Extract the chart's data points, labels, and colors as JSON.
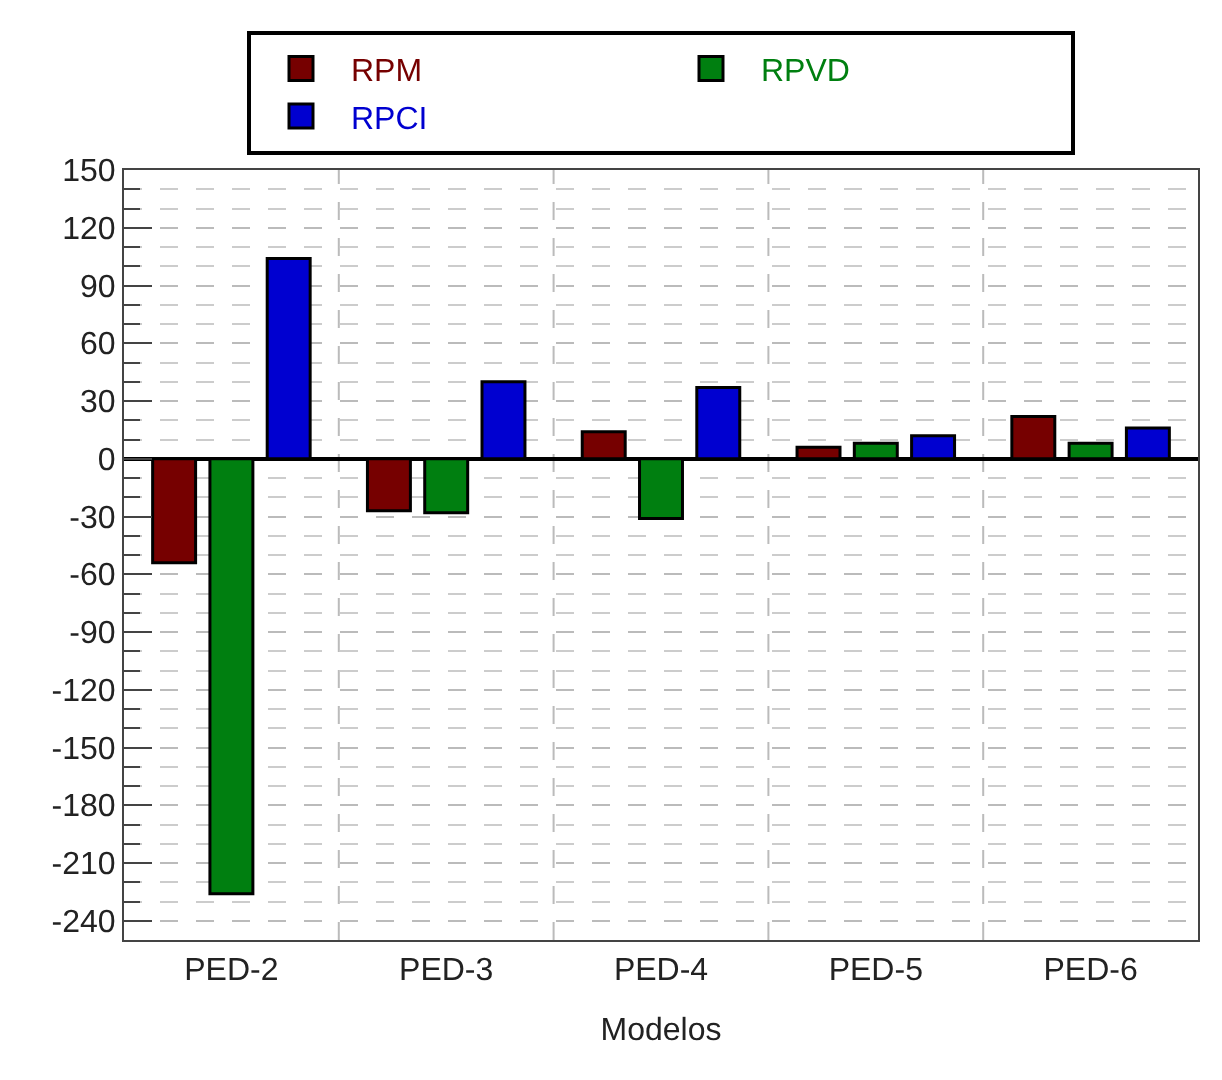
{
  "chart_data": {
    "type": "bar",
    "xlabel": "Modelos",
    "categories": [
      "PED-2",
      "PED-3",
      "PED-4",
      "PED-5",
      "PED-6"
    ],
    "series": [
      {
        "name": "RPM",
        "color": "#760000",
        "values": [
          -54,
          -27,
          14,
          6,
          22
        ]
      },
      {
        "name": "RPVD",
        "color": "#007f10",
        "values": [
          -226,
          -28,
          -31,
          8,
          8
        ]
      },
      {
        "name": "RPCI",
        "color": "#0000d0",
        "values": [
          104,
          40,
          37,
          12,
          16
        ]
      }
    ],
    "ylim": [
      -250,
      150
    ],
    "yticks": [
      150,
      120,
      90,
      60,
      30,
      0,
      -30,
      -60,
      -90,
      -120,
      -150,
      -180,
      -210,
      -240
    ],
    "grid": true,
    "legend": "top"
  }
}
